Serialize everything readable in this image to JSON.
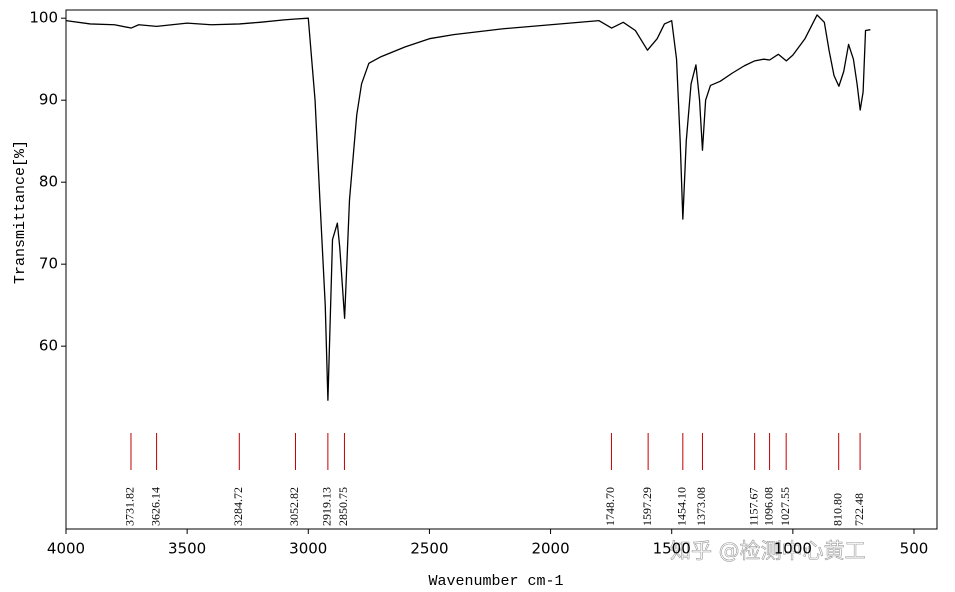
{
  "chart_data": {
    "type": "line",
    "xlabel": "Wavenumber cm-1",
    "ylabel": "Transmittance[%]",
    "xlim": [
      4000,
      405
    ],
    "ylim": [
      37.7,
      101
    ],
    "xticks": [
      4000,
      3500,
      3000,
      2500,
      2000,
      1500,
      1000,
      500
    ],
    "yticks": [
      60,
      70,
      80,
      90,
      100
    ],
    "color": "#000000",
    "peak_color": "#c00000",
    "x": [
      4000,
      3900,
      3800,
      3731,
      3700,
      3626,
      3500,
      3400,
      3284,
      3200,
      3100,
      3052,
      3000,
      2972,
      2952,
      2930,
      2919,
      2900,
      2880,
      2870,
      2850,
      2830,
      2800,
      2780,
      2750,
      2700,
      2600,
      2500,
      2400,
      2200,
      2000,
      1800,
      1748,
      1700,
      1650,
      1600,
      1560,
      1530,
      1500,
      1480,
      1465,
      1454,
      1440,
      1420,
      1400,
      1385,
      1373,
      1360,
      1340,
      1300,
      1250,
      1200,
      1157,
      1120,
      1096,
      1060,
      1027,
      1000,
      950,
      900,
      870,
      850,
      830,
      810,
      790,
      770,
      750,
      735,
      722,
      710,
      700,
      680
    ],
    "values": [
      99.7,
      99.3,
      99.2,
      98.8,
      99.2,
      99.0,
      99.4,
      99.2,
      99.3,
      99.5,
      99.8,
      99.9,
      100,
      90,
      77.8,
      65,
      53.4,
      73,
      75,
      72,
      63.4,
      77.8,
      88.2,
      92,
      94.5,
      95.3,
      96.5,
      97.5,
      98,
      98.7,
      99.2,
      99.7,
      98.8,
      99.5,
      98.5,
      96.1,
      97.5,
      99.3,
      99.7,
      95,
      85,
      75.5,
      85,
      92,
      94.3,
      90,
      83.9,
      90,
      91.8,
      92.3,
      93.3,
      94.2,
      94.8,
      95.0,
      94.9,
      95.6,
      94.8,
      95.5,
      97.5,
      100.4,
      99.5,
      96,
      93,
      91.7,
      93.5,
      96.8,
      95,
      92,
      88.8,
      91,
      98.5,
      98.6
    ],
    "peaks": [
      3731.82,
      3626.14,
      3284.72,
      3052.82,
      2919.13,
      2850.75,
      {
        "value": 1748.7,
        "label": "1748.70"
      },
      1597.29,
      {
        "value": 1454.1,
        "label": "1454.10"
      },
      1373.08,
      1157.67,
      1096.08,
      1027.55,
      {
        "value": 810.8,
        "label": "810.80"
      },
      722.48
    ]
  },
  "watermark": "知乎 @检测中心黄工"
}
